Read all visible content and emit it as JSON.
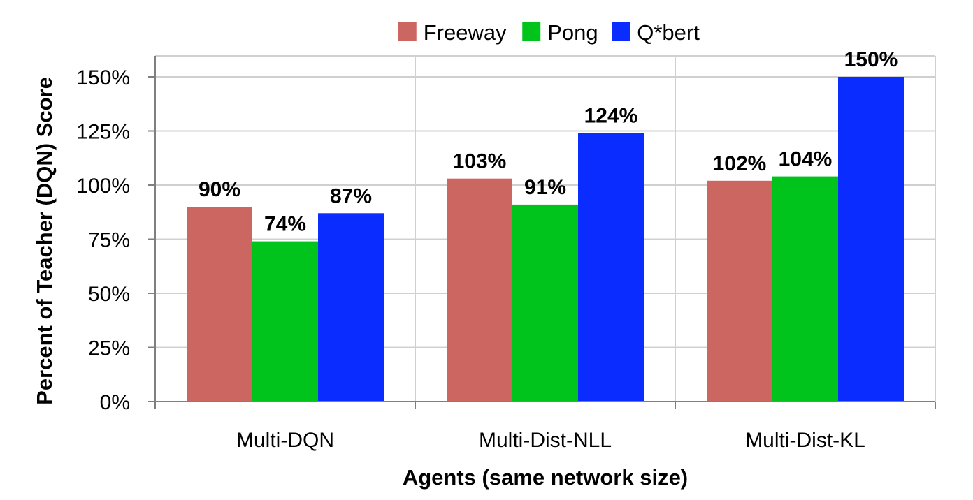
{
  "chart_data": {
    "type": "bar",
    "title": "",
    "xlabel": "Agents (same network size)",
    "ylabel": "Percent of Teacher (DQN) Score",
    "categories": [
      "Multi-DQN",
      "Multi-Dist-NLL",
      "Multi-Dist-KL"
    ],
    "series": [
      {
        "name": "Freeway",
        "color": "#cc6660",
        "values": [
          90,
          103,
          102
        ],
        "labels": [
          "90%",
          "103%",
          "102%"
        ]
      },
      {
        "name": "Pong",
        "color": "#00c41c",
        "values": [
          74,
          91,
          104
        ],
        "labels": [
          "74%",
          "91%",
          "104%"
        ]
      },
      {
        "name": "Q*bert",
        "color": "#0a2cff",
        "values": [
          87,
          124,
          150
        ],
        "labels": [
          "87%",
          "124%",
          "150%"
        ]
      }
    ],
    "yticks": [
      0,
      25,
      50,
      75,
      100,
      125,
      150
    ],
    "ytick_labels": [
      "0%",
      "25%",
      "50%",
      "75%",
      "100%",
      "125%",
      "150%"
    ],
    "ylim": [
      0,
      150
    ],
    "grid": true,
    "legend_position": "top-center"
  }
}
